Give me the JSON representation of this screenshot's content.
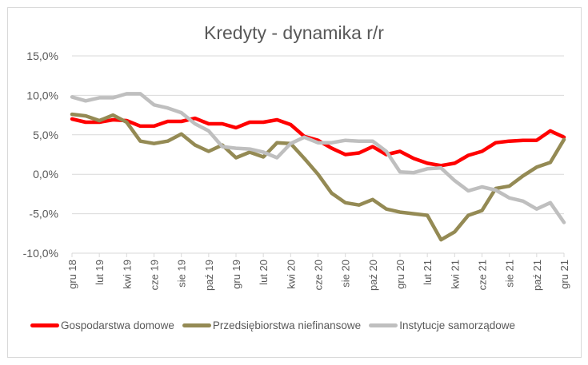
{
  "chart_data": {
    "type": "line",
    "title": "Kredyty - dynamika r/r",
    "xlabel": "",
    "ylabel": "",
    "ylim": [
      -10,
      15
    ],
    "yticks": [
      "15,0%",
      "10,0%",
      "5,0%",
      "0,0%",
      "-5,0%",
      "-10,0%"
    ],
    "ytick_values": [
      15,
      10,
      5,
      0,
      -5,
      -10
    ],
    "grid": true,
    "legend_position": "bottom",
    "x_tick_labels": [
      "gru 18",
      "lut 19",
      "kwi 19",
      "cze 19",
      "sie 19",
      "paź 19",
      "gru 19",
      "lut 20",
      "kwi 20",
      "cze 20",
      "sie 20",
      "paź 20",
      "gru 20",
      "lut 21",
      "kwi 21",
      "cze 21",
      "sie 21",
      "paź 21",
      "gru 21"
    ],
    "n_points": 37,
    "series": [
      {
        "name": "Gospodarstwa domowe",
        "color": "#FF0000",
        "values": [
          7.0,
          6.6,
          6.6,
          6.9,
          6.8,
          6.1,
          6.1,
          6.7,
          6.7,
          7.1,
          6.4,
          6.4,
          5.9,
          6.6,
          6.6,
          6.9,
          6.3,
          4.8,
          4.3,
          3.3,
          2.5,
          2.7,
          3.5,
          2.5,
          2.9,
          2.0,
          1.4,
          1.1,
          1.4,
          2.4,
          2.9,
          4.0,
          4.2,
          4.3,
          4.3,
          5.5,
          4.7
        ]
      },
      {
        "name": "Przedsiębiorstwa niefinansowe",
        "color": "#948A54",
        "values": [
          7.6,
          7.4,
          6.8,
          7.5,
          6.6,
          4.2,
          3.9,
          4.2,
          5.1,
          3.7,
          2.9,
          3.7,
          2.1,
          2.8,
          2.2,
          4.0,
          3.9,
          2.0,
          0.0,
          -2.4,
          -3.6,
          -3.9,
          -3.2,
          -4.4,
          -4.8,
          -5.0,
          -5.2,
          -8.3,
          -7.3,
          -5.2,
          -4.6,
          -1.8,
          -1.5,
          -0.2,
          0.9,
          1.5,
          4.4
        ]
      },
      {
        "name": "Instytucje samorządowe",
        "color": "#BFBFBF",
        "values": [
          9.8,
          9.3,
          9.7,
          9.7,
          10.2,
          10.2,
          8.8,
          8.4,
          7.8,
          6.4,
          5.5,
          3.5,
          3.3,
          3.2,
          2.8,
          2.1,
          3.9,
          4.7,
          4.0,
          4.0,
          4.3,
          4.2,
          4.2,
          2.9,
          0.3,
          0.2,
          0.7,
          0.8,
          -0.8,
          -2.1,
          -1.6,
          -2.0,
          -3.0,
          -3.4,
          -4.4,
          -3.6,
          -6.1
        ]
      }
    ]
  }
}
